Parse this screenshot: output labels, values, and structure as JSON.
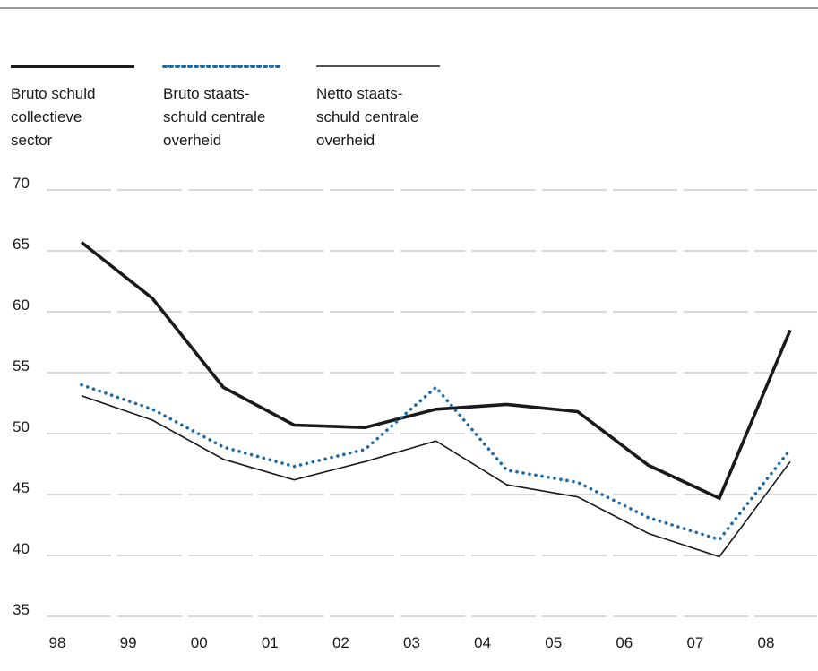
{
  "chart_data": {
    "type": "line",
    "categories": [
      "98",
      "99",
      "00",
      "01",
      "02",
      "03",
      "04",
      "05",
      "06",
      "07",
      "08"
    ],
    "series": [
      {
        "name": "Bruto schuld collectieve sector",
        "values": [
          65.7,
          61.1,
          53.8,
          50.7,
          50.5,
          52.0,
          52.4,
          51.8,
          47.4,
          44.7,
          58.5
        ],
        "color": "#1a1a1a",
        "style": "thick"
      },
      {
        "name": "Bruto staats-schuld centrale overheid",
        "values": [
          54.0,
          52.0,
          48.9,
          47.3,
          48.7,
          53.8,
          47.0,
          46.0,
          43.1,
          41.3,
          48.7
        ],
        "color": "#1f6aa5",
        "style": "dotted"
      },
      {
        "name": "Netto staats-schuld centrale overheid",
        "values": [
          53.1,
          51.1,
          47.9,
          46.2,
          47.7,
          49.4,
          45.8,
          44.8,
          41.8,
          39.9,
          47.7
        ],
        "color": "#1a1a1a",
        "style": "thin"
      }
    ],
    "yticks": [
      70,
      65,
      60,
      55,
      50,
      45,
      40,
      35
    ],
    "ylim": [
      35,
      70
    ],
    "grid": true,
    "legend_position": "top-left"
  },
  "legend": {
    "items": [
      {
        "label": "Bruto schuld\ncollectieve\nsector"
      },
      {
        "label": "Bruto staats-\nschuld centrale\noverheid"
      },
      {
        "label": "Netto staats-\nschuld centrale\noverheid"
      }
    ]
  },
  "colors": {
    "grid": "#b3b3b3",
    "dotted_series": "#1f6aa5",
    "dark_series": "#1a1a1a"
  }
}
